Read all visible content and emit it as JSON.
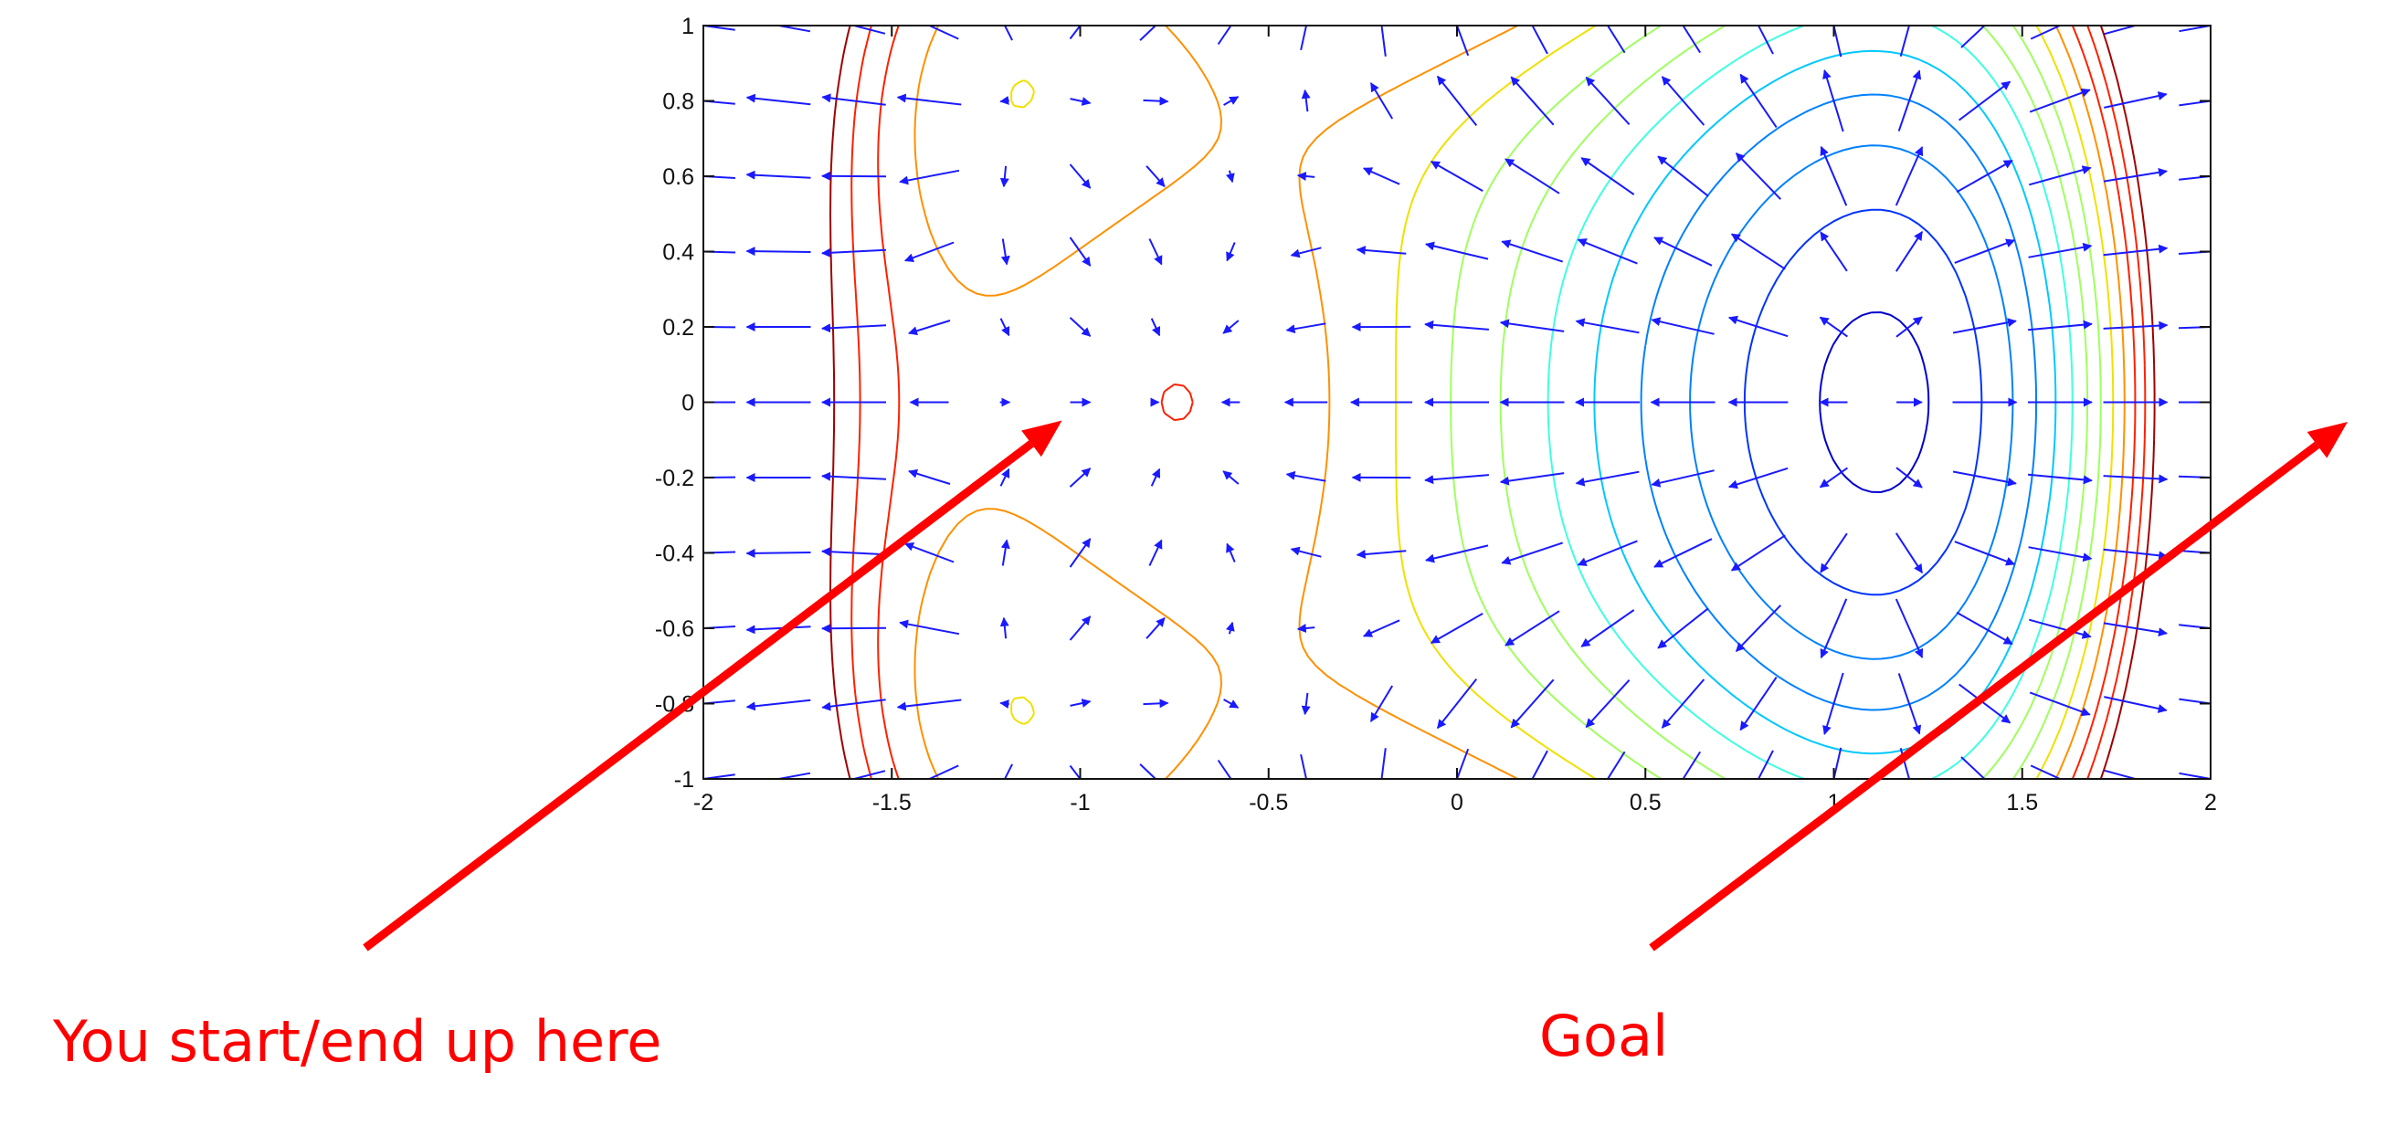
{
  "chart_data": {
    "type": "contour",
    "title": "",
    "xlabel": "",
    "ylabel": "",
    "xlim": [
      -2,
      2
    ],
    "ylim": [
      -1,
      1
    ],
    "x_ticks": [
      -2,
      -1.5,
      -1,
      -0.5,
      0,
      0.5,
      1,
      1.5,
      2
    ],
    "x_tick_labels": [
      "-2",
      "-1.5",
      "-1",
      "-0.5",
      "0",
      "0.5",
      "1",
      "1.5",
      "2"
    ],
    "y_ticks": [
      1,
      0.8,
      0.6,
      0.4,
      0.2,
      0,
      -0.2,
      -0.4,
      -0.6,
      -0.8,
      -1
    ],
    "y_tick_labels": [
      "1",
      "0.8",
      "0.6",
      "0.4",
      "0.2",
      "0",
      "-0.2",
      "-0.4",
      "-0.6",
      "-0.8",
      "-1"
    ],
    "grid": false,
    "contour_colors": [
      "#0000cc",
      "#0033ff",
      "#0080ff",
      "#00c8ff",
      "#40ffe0",
      "#a0ff60",
      "#f0e000",
      "#ff9000",
      "#ff2000",
      "#a00000"
    ],
    "maximum": {
      "x": -1,
      "y": 0,
      "label": "You start/end up here"
    },
    "saddle": {
      "x": 1,
      "y": 0
    },
    "goal_target": {
      "x": 2,
      "y": 0,
      "label": "Goal"
    },
    "vector_field": {
      "x_step": 0.2,
      "y_step": 0.2,
      "color": "#1a1aff"
    }
  },
  "annotations": [
    {
      "id": "start",
      "text": "You start/end up here",
      "color": "#ff0000"
    },
    {
      "id": "goal",
      "text": "Goal",
      "color": "#ff0000"
    }
  ],
  "colors": {
    "axis": "#111111",
    "arrow": "#ff0000",
    "vector": "#1a1aff"
  }
}
